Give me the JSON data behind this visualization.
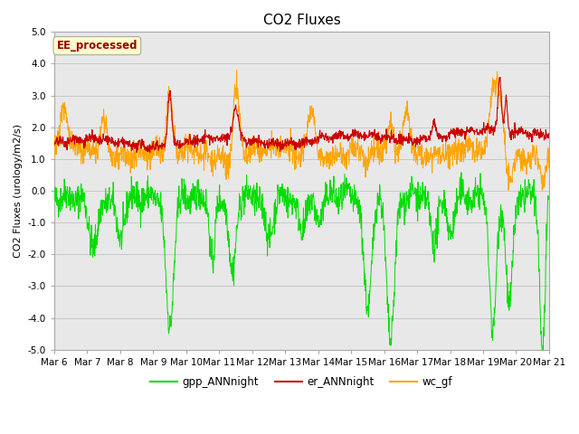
{
  "title": "CO2 Fluxes",
  "ylabel": "CO2 Fluxes (urology/m2/s)",
  "ylim": [
    -5.0,
    5.0
  ],
  "yticks": [
    -5.0,
    -4.0,
    -3.0,
    -2.0,
    -1.0,
    0.0,
    1.0,
    2.0,
    3.0,
    4.0,
    5.0
  ],
  "xtick_labels": [
    "Mar 6",
    "Mar 7",
    "Mar 8",
    "Mar 9",
    "Mar 10",
    "Mar 11",
    "Mar 12",
    "Mar 13",
    "Mar 14",
    "Mar 15",
    "Mar 16",
    "Mar 17",
    "Mar 18",
    "Mar 19",
    "Mar 20",
    "Mar 21"
  ],
  "color_gpp": "#00dd00",
  "color_er": "#cc0000",
  "color_wc": "#ffa500",
  "legend_labels": [
    "gpp_ANNnight",
    "er_ANNnight",
    "wc_gf"
  ],
  "annotation_text": "EE_processed",
  "annotation_color": "#990000",
  "annotation_bg": "#ffffcc",
  "annotation_edge": "#aaaaaa",
  "fig_bg": "#ffffff",
  "plot_bg": "#e8e8e8",
  "grid_color": "#c8c8c8",
  "title_fontsize": 11,
  "label_fontsize": 8,
  "tick_fontsize": 7.5,
  "n_points": 1500,
  "seed": 42
}
